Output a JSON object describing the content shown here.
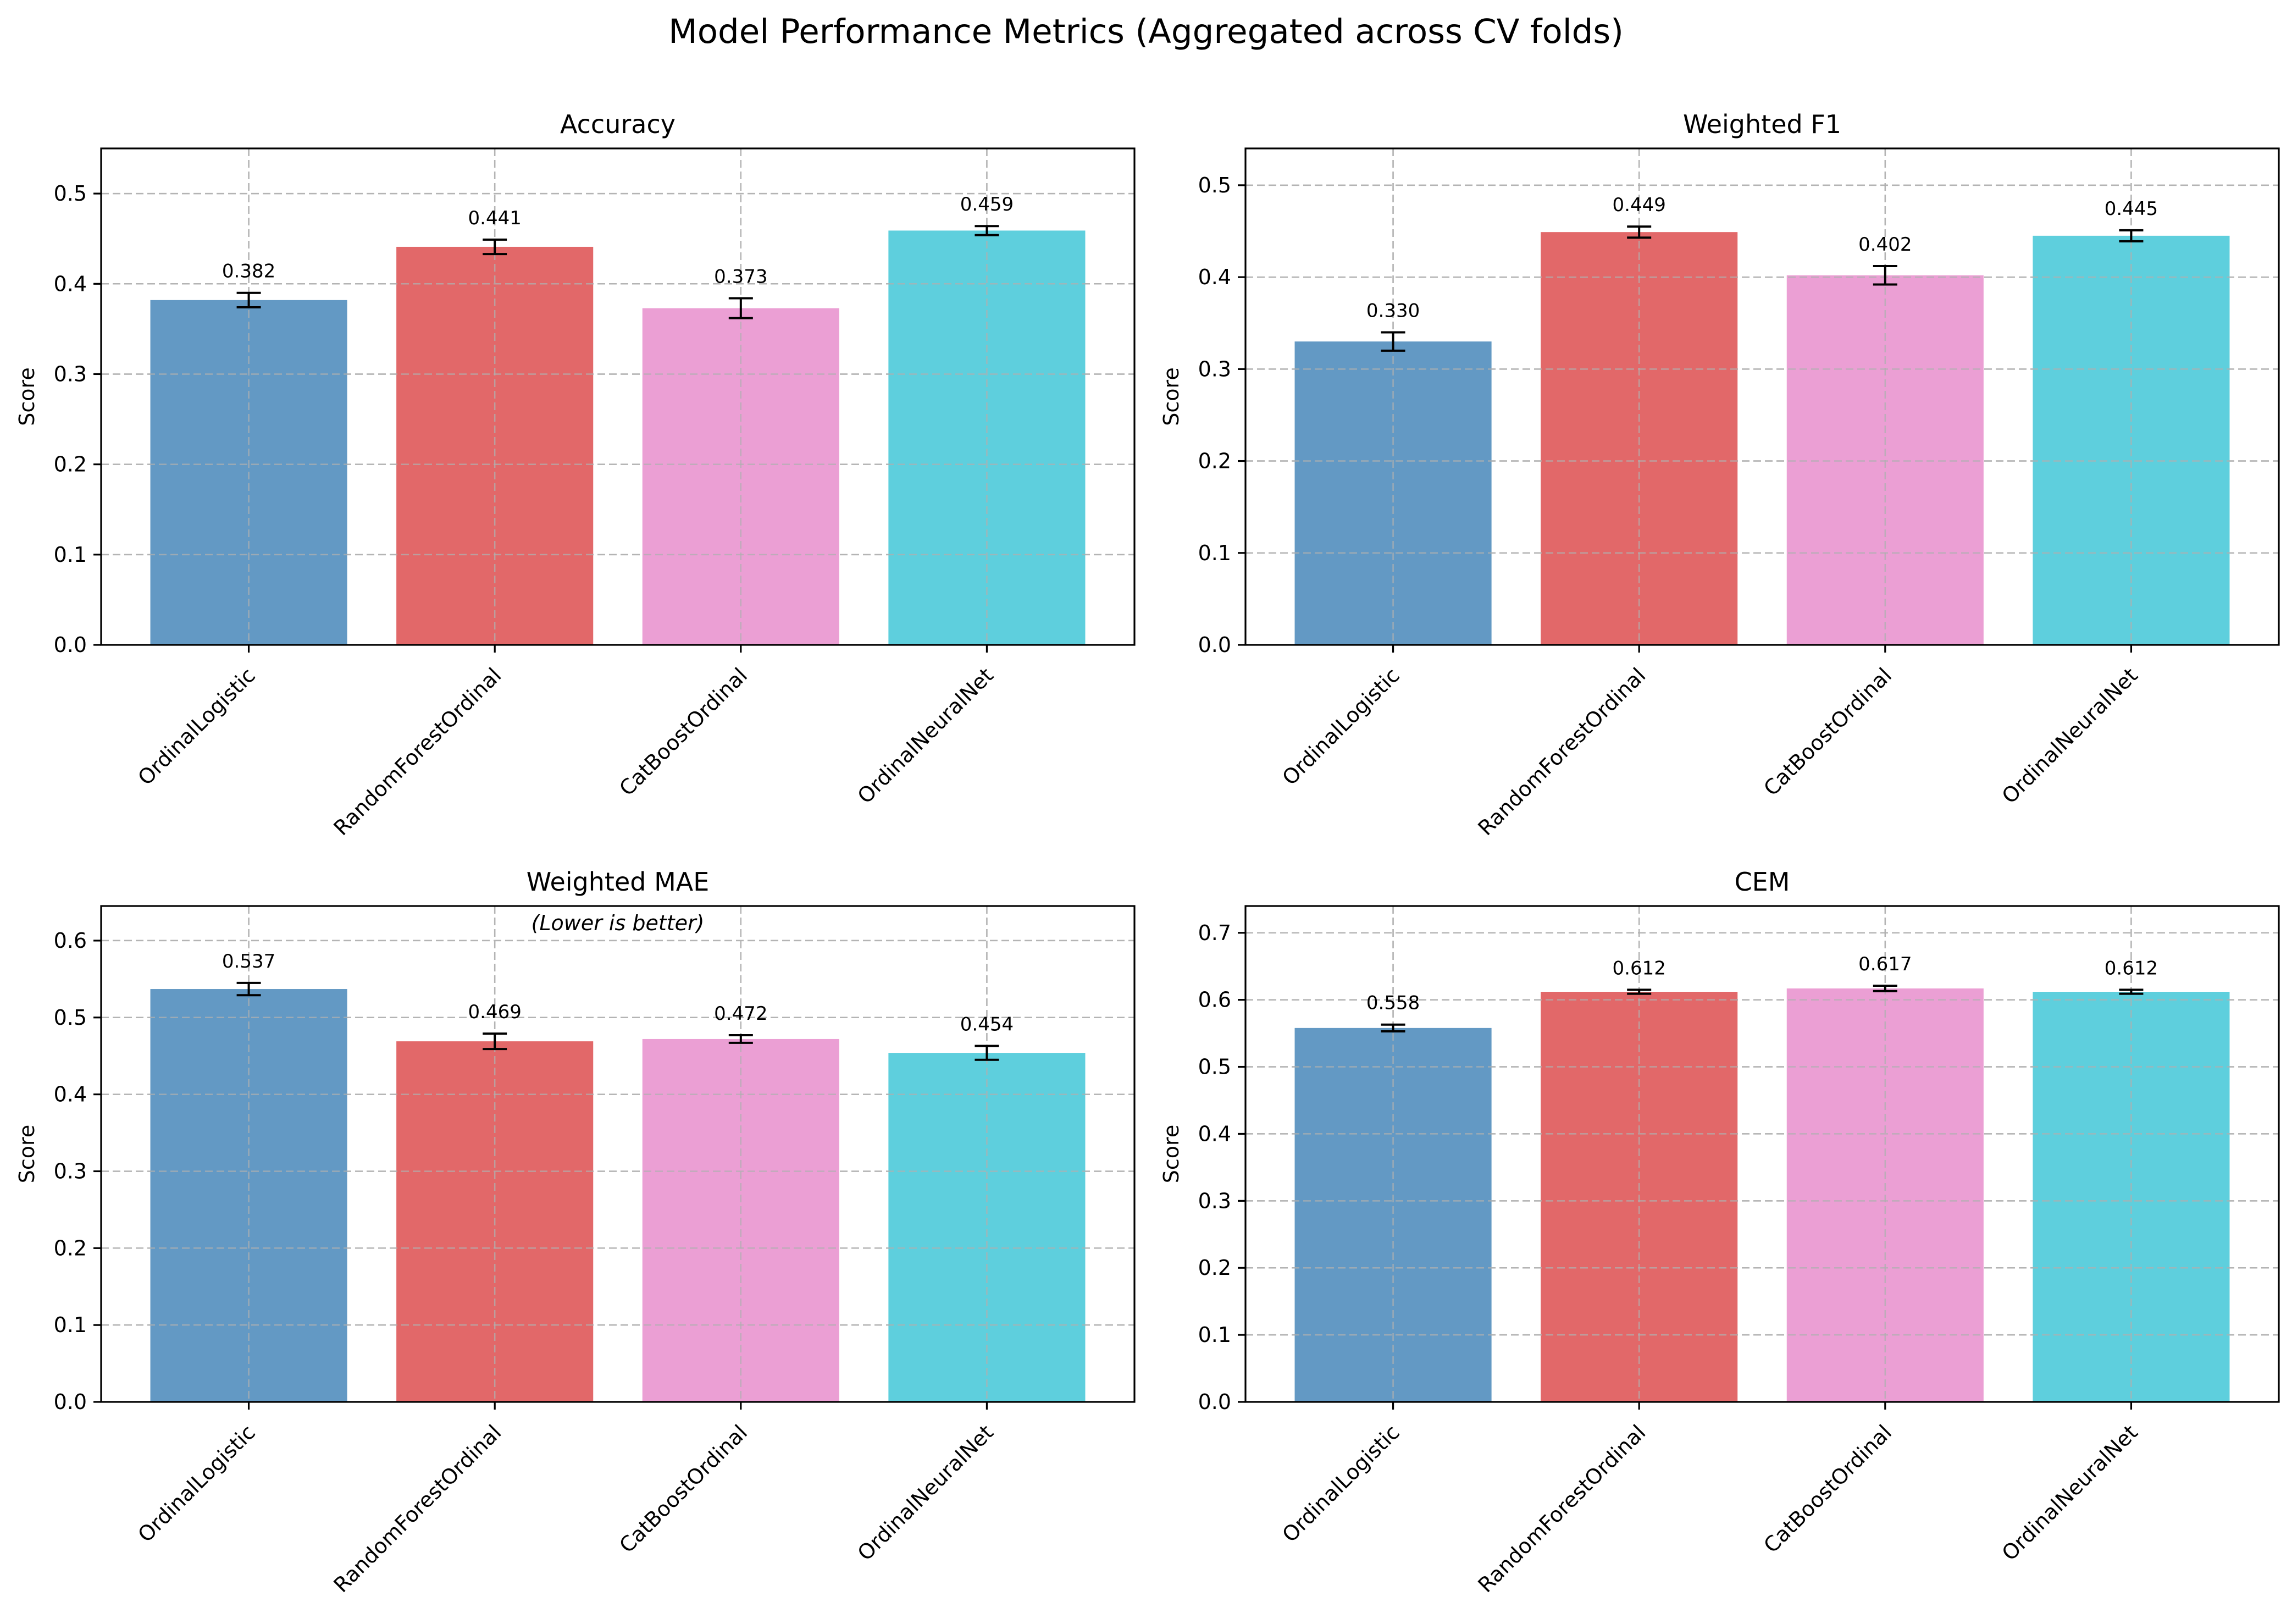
{
  "figure": {
    "title": "Model Performance Metrics (Aggregated across CV folds)"
  },
  "colors": {
    "OrdinalLogistic": "#6399c4",
    "RandomForestOrdinal": "#e26869",
    "CatBoostOrdinal": "#eb9fd4",
    "OrdinalNeuralNet": "#5ecfdd"
  },
  "chart_data": [
    {
      "type": "bar",
      "title": "Accuracy",
      "subtitle": "",
      "xlabel": "",
      "ylabel": "Score",
      "categories": [
        "OrdinalLogistic",
        "RandomForestOrdinal",
        "CatBoostOrdinal",
        "OrdinalNeuralNet"
      ],
      "values": [
        0.382,
        0.441,
        0.373,
        0.459
      ],
      "errors": [
        0.008,
        0.008,
        0.011,
        0.005
      ],
      "value_labels": [
        "0.382",
        "0.441",
        "0.373",
        "0.459"
      ],
      "ylim": [
        0,
        0.55
      ],
      "yticks": [
        0.0,
        0.1,
        0.2,
        0.3,
        0.4,
        0.5
      ],
      "ytick_labels": [
        "0.0",
        "0.1",
        "0.2",
        "0.3",
        "0.4",
        "0.5"
      ],
      "grid": true
    },
    {
      "type": "bar",
      "title": "Weighted F1",
      "subtitle": "",
      "xlabel": "",
      "ylabel": "Score",
      "categories": [
        "OrdinalLogistic",
        "RandomForestOrdinal",
        "CatBoostOrdinal",
        "OrdinalNeuralNet"
      ],
      "values": [
        0.33,
        0.449,
        0.402,
        0.445
      ],
      "errors": [
        0.01,
        0.006,
        0.01,
        0.006
      ],
      "value_labels": [
        "0.330",
        "0.449",
        "0.402",
        "0.445"
      ],
      "ylim": [
        0,
        0.54
      ],
      "yticks": [
        0.0,
        0.1,
        0.2,
        0.3,
        0.4,
        0.5
      ],
      "ytick_labels": [
        "0.0",
        "0.1",
        "0.2",
        "0.3",
        "0.4",
        "0.5"
      ],
      "grid": true
    },
    {
      "type": "bar",
      "title": "Weighted MAE",
      "subtitle": "(Lower is better)",
      "xlabel": "",
      "ylabel": "Score",
      "categories": [
        "OrdinalLogistic",
        "RandomForestOrdinal",
        "CatBoostOrdinal",
        "OrdinalNeuralNet"
      ],
      "values": [
        0.537,
        0.469,
        0.472,
        0.454
      ],
      "errors": [
        0.008,
        0.01,
        0.005,
        0.009
      ],
      "value_labels": [
        "0.537",
        "0.469",
        "0.472",
        "0.454"
      ],
      "ylim": [
        0,
        0.645
      ],
      "yticks": [
        0.0,
        0.1,
        0.2,
        0.3,
        0.4,
        0.5,
        0.6
      ],
      "ytick_labels": [
        "0.0",
        "0.1",
        "0.2",
        "0.3",
        "0.4",
        "0.5",
        "0.6"
      ],
      "grid": true
    },
    {
      "type": "bar",
      "title": "CEM",
      "subtitle": "",
      "xlabel": "",
      "ylabel": "Score",
      "categories": [
        "OrdinalLogistic",
        "RandomForestOrdinal",
        "CatBoostOrdinal",
        "OrdinalNeuralNet"
      ],
      "values": [
        0.558,
        0.612,
        0.617,
        0.612
      ],
      "errors": [
        0.005,
        0.003,
        0.004,
        0.003
      ],
      "value_labels": [
        "0.558",
        "0.612",
        "0.617",
        "0.612"
      ],
      "ylim": [
        0,
        0.74
      ],
      "yticks": [
        0.0,
        0.1,
        0.2,
        0.3,
        0.4,
        0.5,
        0.6,
        0.7
      ],
      "ytick_labels": [
        "0.0",
        "0.1",
        "0.2",
        "0.3",
        "0.4",
        "0.5",
        "0.6",
        "0.7"
      ],
      "grid": true
    }
  ]
}
